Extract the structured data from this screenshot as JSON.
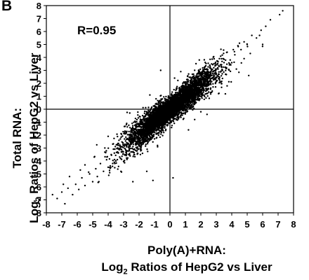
{
  "panel_label": "B",
  "chart_data": {
    "type": "scatter",
    "title": "",
    "annotation": "R=0.95",
    "xlabel_line1": "Poly(A)+RNA:",
    "xlabel_line2_pre": "Log",
    "xlabel_line2_sub": "2",
    "xlabel_line2_post": " Ratios of HepG2 vs Liver",
    "ylabel_line1": "Total RNA:",
    "ylabel_line2_pre": "Log",
    "ylabel_line2_sub": "2",
    "ylabel_line2_post": " Ratios of HepG2 vs Liver",
    "xlim": [
      -8,
      8
    ],
    "ylim": [
      -8,
      8
    ],
    "xticks": [
      -8,
      -7,
      -6,
      -5,
      -4,
      -3,
      -2,
      -1,
      0,
      1,
      2,
      3,
      4,
      5,
      6,
      7,
      8
    ],
    "yticks": [
      -8,
      -7,
      -6,
      -5,
      -4,
      -3,
      -2,
      -1,
      0,
      1,
      2,
      3,
      4,
      5,
      6,
      7,
      8
    ],
    "correlation": 0.95,
    "series": [
      {
        "color": "#000000",
        "points": [
          [
            7.3,
            7.6
          ],
          [
            7.1,
            7.3
          ],
          [
            6.5,
            6.9
          ],
          [
            6.2,
            6.4
          ],
          [
            5.9,
            6.1
          ],
          [
            5.6,
            5.5
          ],
          [
            5.3,
            5.7
          ],
          [
            5.0,
            5.0
          ],
          [
            4.8,
            5.2
          ],
          [
            4.6,
            4.6
          ],
          [
            4.4,
            4.9
          ],
          [
            4.2,
            4.2
          ],
          [
            4.1,
            4.6
          ],
          [
            3.9,
            3.8
          ],
          [
            3.7,
            4.4
          ],
          [
            3.5,
            3.6
          ],
          [
            3.4,
            3.0
          ],
          [
            3.2,
            3.9
          ],
          [
            3.0,
            3.1
          ],
          [
            2.9,
            2.4
          ],
          [
            -7.6,
            -6.6
          ],
          [
            -7.3,
            -6.9
          ],
          [
            -7.0,
            -6.4
          ],
          [
            -6.8,
            -7.3
          ],
          [
            -6.6,
            -6.1
          ],
          [
            -6.3,
            -6.6
          ],
          [
            -6.1,
            -5.8
          ],
          [
            -5.9,
            -6.2
          ],
          [
            -5.7,
            -5.3
          ],
          [
            -5.5,
            -5.9
          ],
          [
            -5.2,
            -5.0
          ],
          [
            -5.0,
            -5.6
          ],
          [
            -4.8,
            -4.6
          ],
          [
            -4.7,
            -5.2
          ],
          [
            -4.5,
            -4.2
          ],
          [
            -4.3,
            -4.8
          ],
          [
            -4.1,
            -3.9
          ],
          [
            -3.9,
            -4.5
          ],
          [
            -3.8,
            -3.5
          ],
          [
            -3.6,
            -4.1
          ],
          [
            -3.4,
            -3.3
          ],
          [
            -3.2,
            -3.8
          ],
          [
            -3.1,
            -2.9
          ],
          [
            -2.9,
            -3.5
          ],
          [
            -2.8,
            -1.1
          ],
          [
            -1.8,
            -0.9
          ],
          [
            2.0,
            -0.2
          ],
          [
            -0.4,
            -1.8
          ],
          [
            -1.1,
            -5.5
          ],
          [
            3.7,
            1.8
          ],
          [
            -0.6,
            3.0
          ],
          [
            -1.5,
            -4.8
          ],
          [
            5.1,
            2.6
          ],
          [
            -4.0,
            -2.1
          ],
          [
            1.9,
            3.8
          ],
          [
            4.8,
            3.9
          ],
          [
            -2.4,
            -5.6
          ],
          [
            0.2,
            -5.3
          ],
          [
            -5.8,
            -4.7
          ],
          [
            1.0,
            1.5
          ],
          [
            -0.7,
            -1.4
          ],
          [
            0.4,
            0.6
          ],
          [
            -1.9,
            -2.6
          ],
          [
            2.2,
            2.5
          ],
          [
            -3.3,
            -2.4
          ],
          [
            3.1,
            3.7
          ],
          [
            1.6,
            -0.8
          ],
          [
            -0.9,
            0.8
          ],
          [
            2.4,
            -0.4
          ],
          [
            0.3,
            2.4
          ],
          [
            -2.6,
            -0.3
          ],
          [
            -1.3,
            1.1
          ],
          [
            1.2,
            -1.6
          ],
          [
            -3.7,
            -2.7
          ],
          [
            4.3,
            3.1
          ],
          [
            -4.9,
            -3.7
          ],
          [
            5.2,
            4.3
          ],
          [
            -5.5,
            -4.3
          ],
          [
            2.7,
            1.3
          ],
          [
            -2.1,
            -3.4
          ],
          [
            3.3,
            2.1
          ],
          [
            -3.9,
            -4.9
          ],
          [
            1.4,
            0.2
          ],
          [
            -0.2,
            -0.9
          ],
          [
            0.9,
            2.1
          ],
          [
            -1.4,
            -0.1
          ],
          [
            -6.5,
            -5.2
          ],
          [
            -6.9,
            -5.8
          ],
          [
            6.0,
            5.0
          ],
          [
            5.8,
            5.7
          ],
          [
            -4.6,
            -5.6
          ],
          [
            4.5,
            5.1
          ],
          [
            -0.8,
            -2.9
          ],
          [
            0.7,
            2.9
          ],
          [
            2.6,
            3.3
          ],
          [
            -2.9,
            -1.9
          ],
          [
            3.6,
            2.7
          ],
          [
            -3.5,
            -4.0
          ]
        ],
        "cloud": {
          "count": 5000,
          "slope": 0.95,
          "spread": 0.55,
          "x_sd": 1.4,
          "x_mean": 0.0
        }
      }
    ],
    "grid": false,
    "legend": "none"
  }
}
